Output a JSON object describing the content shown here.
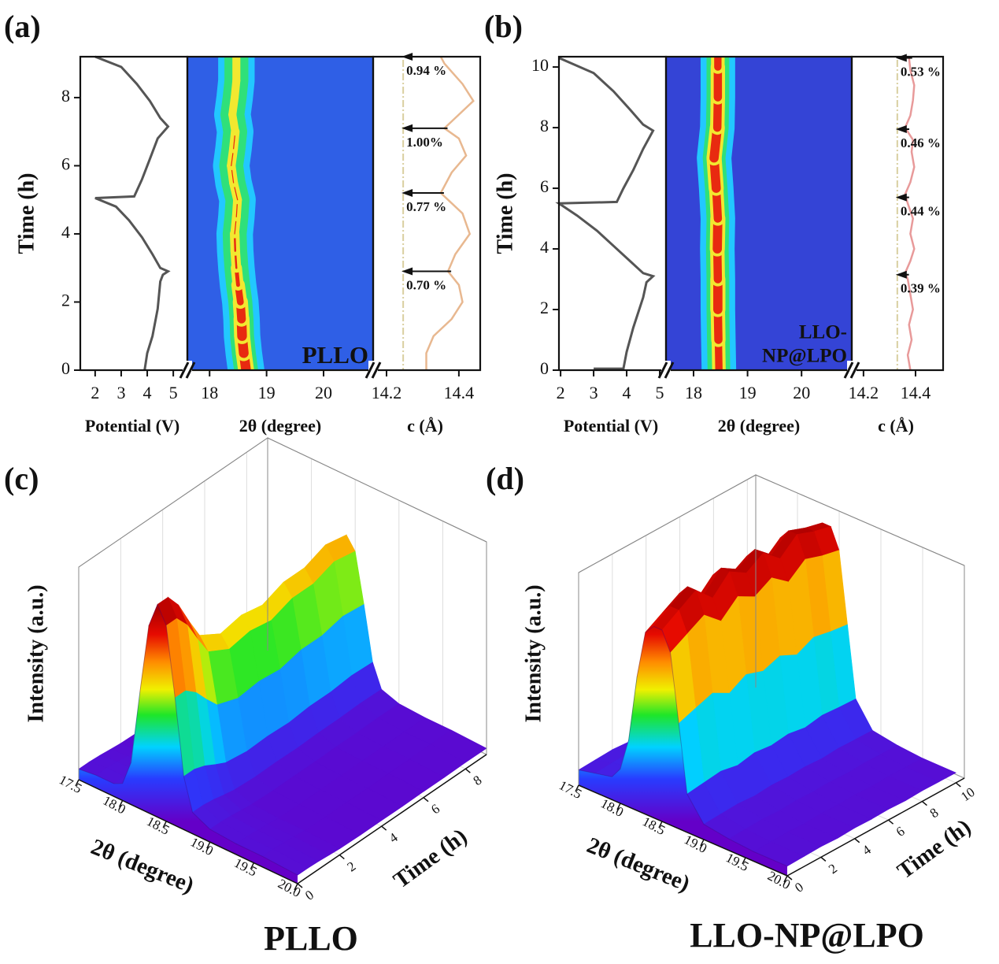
{
  "chart_data": [
    {
      "type": "operando",
      "panel_label": "(a)",
      "ylabel": "Time (h)",
      "ylim": [
        0,
        9.2
      ],
      "yticks": [
        0,
        2,
        4,
        6,
        8
      ],
      "potential": {
        "xlabel": "Potential (V)",
        "xlim": [
          1.43,
          5.54
        ],
        "xticks": [
          2,
          3,
          4,
          5
        ],
        "color": "#555555",
        "x": [
          3.9,
          4.0,
          4.2,
          4.4,
          4.5,
          4.6,
          4.8,
          4.5,
          4.2,
          3.8,
          3.3,
          2.8,
          2.0,
          3.5,
          3.8,
          4.1,
          4.4,
          4.8,
          4.5,
          4.1,
          3.6,
          3.0,
          2.0
        ],
        "y": [
          0,
          0.5,
          1.0,
          1.8,
          2.6,
          2.8,
          2.9,
          3.0,
          3.4,
          3.9,
          4.4,
          4.8,
          5.05,
          5.1,
          5.6,
          6.2,
          6.8,
          7.15,
          7.4,
          7.9,
          8.4,
          8.9,
          9.2
        ]
      },
      "xrd": {
        "xlabel": "2θ (degree)",
        "xlim": [
          17.61,
          20.87
        ],
        "xticks": [
          18,
          19,
          20
        ],
        "background": "#2f5fe6",
        "sample_label": [
          "PLLO"
        ],
        "sample_label_color": "#cfc6a6",
        "time": [
          0,
          0.5,
          1,
          1.5,
          2,
          2.5,
          3,
          3.5,
          4,
          4.5,
          5,
          5.5,
          6,
          6.5,
          7,
          7.5,
          8,
          8.5,
          9.2
        ],
        "peak_position": [
          18.64,
          18.6,
          18.57,
          18.56,
          18.54,
          18.5,
          18.47,
          18.45,
          18.44,
          18.47,
          18.49,
          18.42,
          18.38,
          18.42,
          18.45,
          18.4,
          18.44,
          18.47,
          18.47
        ],
        "peak_intensity": [
          1,
          1,
          1,
          0.95,
          0.85,
          0.7,
          0.6,
          0.6,
          0.55,
          0.55,
          0.55,
          0.55,
          0.55,
          0.55,
          0.5,
          0.5,
          0.5,
          0.5,
          0.5
        ]
      },
      "lattice": {
        "xlabel": "c (Å)",
        "xlim": [
          14.163,
          14.459
        ],
        "xticks": [
          14.2,
          14.4
        ],
        "reference": 14.246,
        "color": "#e8b890",
        "x": [
          14.31,
          14.31,
          14.33,
          14.38,
          14.41,
          14.4,
          14.37,
          14.39,
          14.43,
          14.41,
          14.35,
          14.38,
          14.42,
          14.4,
          14.36,
          14.4,
          14.44,
          14.41,
          14.36,
          14.35
        ],
        "y": [
          0,
          0.5,
          1,
          1.5,
          2,
          2.5,
          2.9,
          3.4,
          4,
          4.6,
          5.2,
          5.8,
          6.3,
          6.8,
          7.1,
          7.5,
          7.9,
          8.4,
          9,
          9.2
        ],
        "annotations": [
          {
            "text": "0.94 %",
            "time": 9.2
          },
          {
            "text": "1.00%",
            "time": 7.1
          },
          {
            "text": "0.77 %",
            "time": 5.2
          },
          {
            "text": "0.70 %",
            "time": 2.9
          }
        ]
      }
    },
    {
      "type": "operando",
      "panel_label": "(b)",
      "ylabel": "Time (h)",
      "ylim": [
        0,
        10.34
      ],
      "yticks": [
        0,
        2,
        4,
        6,
        8,
        10
      ],
      "potential": {
        "xlabel": "Potential (V)",
        "xlim": [
          1.95,
          5.19
        ],
        "xticks": [
          2,
          3,
          4,
          5
        ],
        "color": "#555555",
        "x": [
          3.0,
          3.9,
          4.0,
          4.2,
          4.5,
          4.6,
          4.8,
          4.5,
          4.1,
          3.6,
          3.1,
          2.5,
          1.95,
          3.7,
          3.9,
          4.2,
          4.5,
          4.8,
          4.5,
          4.1,
          3.6,
          3.0,
          1.95
        ],
        "y": [
          0.05,
          0.05,
          0.6,
          1.4,
          2.4,
          2.9,
          3.1,
          3.2,
          3.6,
          4.1,
          4.6,
          5.1,
          5.5,
          5.55,
          6.0,
          6.6,
          7.3,
          7.9,
          8.1,
          8.6,
          9.2,
          9.8,
          10.3
        ]
      },
      "xrd": {
        "xlabel": "2θ (degree)",
        "xlim": [
          17.49,
          20.93
        ],
        "xticks": [
          18,
          19,
          20
        ],
        "background": "#3444d6",
        "sample_label": [
          "LLO-",
          "NP@LPO"
        ],
        "sample_label_color": "#dcaee6",
        "time": [
          0,
          1,
          2,
          3,
          4,
          5,
          6,
          7,
          8,
          9,
          10,
          10.3
        ],
        "peak_position": [
          18.47,
          18.46,
          18.45,
          18.45,
          18.44,
          18.45,
          18.42,
          18.38,
          18.44,
          18.45,
          18.45,
          18.45
        ],
        "peak_intensity": [
          0.9,
          0.95,
          1,
          0.95,
          1,
          0.95,
          1,
          1,
          0.95,
          0.95,
          0.9,
          0.9
        ]
      },
      "lattice": {
        "xlabel": "c (Å)",
        "xlim": [
          14.155,
          14.506
        ],
        "xticks": [
          14.2,
          14.4
        ],
        "reference": 14.33,
        "color": "#e89a9a",
        "x": [
          14.38,
          14.37,
          14.385,
          14.375,
          14.39,
          14.38,
          14.37,
          14.36,
          14.38,
          14.395,
          14.38,
          14.39,
          14.37,
          14.36,
          14.38,
          14.395,
          14.385,
          14.39,
          14.36,
          14.38,
          14.39,
          14.395,
          14.38,
          14.375
        ],
        "y": [
          0,
          0.5,
          1,
          1.5,
          2,
          2.5,
          3,
          3.2,
          3.6,
          4,
          4.5,
          5,
          5.5,
          5.8,
          6.2,
          6.7,
          7.2,
          7.6,
          8,
          8.4,
          8.9,
          9.4,
          9.9,
          10.3
        ],
        "annotations": [
          {
            "text": "0.53 %",
            "time": 10.3
          },
          {
            "text": "0.46 %",
            "time": 7.95
          },
          {
            "text": "0.44 %",
            "time": 5.7
          },
          {
            "text": "0.39 %",
            "time": 3.15
          }
        ]
      }
    },
    {
      "type": "surface3d",
      "panel_label": "(c)",
      "title": "PLLO",
      "zlabel": "Intensity (a.u.)",
      "xlabel": "2θ (degree)",
      "ylabel": "Time (h)",
      "xlim": [
        17.5,
        20.0
      ],
      "xticks": [
        17.5,
        {
          "value": 18,
          "label": "18.0"
        },
        18.5,
        {
          "value": 19,
          "label": "19.0"
        },
        19.5,
        {
          "value": 20,
          "label": "20.0"
        }
      ],
      "ylim": [
        0,
        9
      ],
      "yticks": [
        0,
        2,
        4,
        6,
        8
      ],
      "zlim": [
        0,
        1
      ],
      "profile": {
        "two_theta": [
          17.5,
          17.7,
          17.9,
          18.0,
          18.1,
          18.2,
          18.3,
          18.4,
          18.5,
          18.6,
          18.7,
          18.8,
          19.0,
          19.3,
          19.6,
          20.0
        ],
        "values": [
          0.05,
          0.06,
          0.06,
          0.08,
          0.2,
          0.55,
          0.88,
          1.0,
          0.92,
          0.6,
          0.25,
          0.1,
          0.06,
          0.05,
          0.05,
          0.04
        ]
      },
      "amplitude": {
        "time": [
          0,
          0.5,
          1,
          1.5,
          2,
          3,
          4,
          5,
          6,
          7,
          8,
          9
        ],
        "values": [
          1.0,
          1.0,
          0.93,
          0.82,
          0.72,
          0.66,
          0.68,
          0.66,
          0.7,
          0.7,
          0.74,
          0.72
        ]
      }
    },
    {
      "type": "surface3d",
      "panel_label": "(d)",
      "title": "LLO-NP@LPO",
      "zlabel": "Intensity (a.u.)",
      "xlabel": "2θ (degree)",
      "ylabel": "Time (h)",
      "xlim": [
        17.5,
        20.0
      ],
      "xticks": [
        17.5,
        {
          "value": 18,
          "label": "18.0"
        },
        18.5,
        {
          "value": 19,
          "label": "19.0"
        },
        19.5,
        {
          "value": 20,
          "label": "20.0"
        }
      ],
      "ylim": [
        0,
        10.5
      ],
      "yticks": [
        0,
        2,
        4,
        6,
        8,
        10
      ],
      "zlim": [
        0,
        1
      ],
      "profile": {
        "two_theta": [
          17.5,
          17.7,
          17.9,
          18.0,
          18.1,
          18.2,
          18.3,
          18.4,
          18.5,
          18.6,
          18.7,
          18.8,
          19.0,
          19.3,
          19.6,
          20.0
        ],
        "values": [
          0.08,
          0.1,
          0.12,
          0.18,
          0.35,
          0.7,
          0.95,
          1.0,
          1.0,
          0.9,
          0.55,
          0.2,
          0.08,
          0.06,
          0.05,
          0.05
        ]
      },
      "amplitude": {
        "time": [
          0,
          1,
          2,
          3,
          4,
          5,
          6,
          7,
          8,
          9,
          10
        ],
        "values": [
          0.9,
          0.95,
          1.0,
          0.92,
          1.0,
          0.95,
          1.0,
          0.93,
          1.0,
          0.97,
          0.95
        ]
      }
    }
  ]
}
